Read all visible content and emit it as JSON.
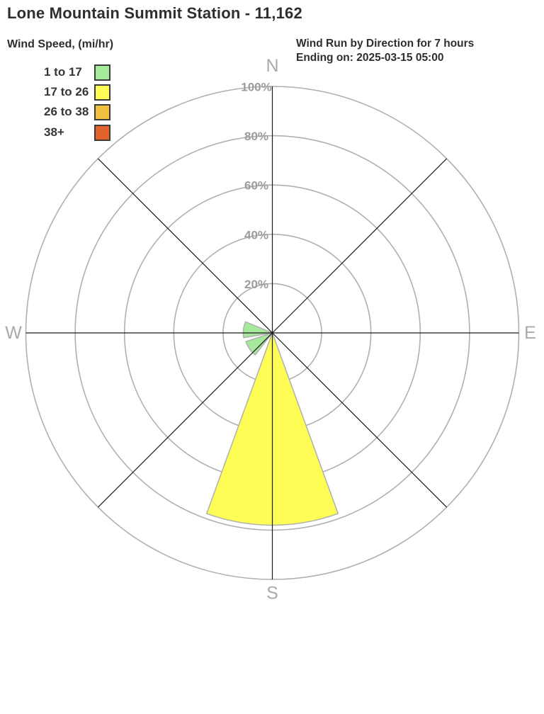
{
  "header": {
    "title": "Lone Mountain Summit Station - 11,162",
    "legend_title": "Wind Speed, (mi/hr)",
    "subtitle_line1": "Wind Run by Direction for 7 hours",
    "subtitle_line2": "Ending on: 2025-03-15 05:00"
  },
  "legend": {
    "items": [
      {
        "label": "1 to 17",
        "color": "#a6e89c"
      },
      {
        "label": "17 to 26",
        "color": "#fdfd55"
      },
      {
        "label": "26 to 38",
        "color": "#f0c03e"
      },
      {
        "label": "38+",
        "color": "#e2632c"
      }
    ]
  },
  "chart_data": {
    "type": "wind_rose",
    "title": "Wind Run by Direction for 7 hours Ending on: 2025-03-15 05:00",
    "station": "Lone Mountain Summit Station - 11,162",
    "units": "percent of wind run by direction",
    "speed_bins_mi_hr": [
      "1 to 17",
      "17 to 26",
      "26 to 38",
      "38+"
    ],
    "bin_colors": [
      "#a6e89c",
      "#fdfd55",
      "#f0c03e",
      "#e2632c"
    ],
    "rings_pct": [
      20,
      40,
      60,
      80,
      100
    ],
    "ring_labels": [
      "20%",
      "40%",
      "60%",
      "80%",
      "100%"
    ],
    "max_pct": 100,
    "grid": true,
    "spokes_deg": [
      0,
      45,
      90,
      135,
      180,
      225,
      270,
      315
    ],
    "compass_labels": [
      {
        "label": "N",
        "deg": 0
      },
      {
        "label": "E",
        "deg": 90
      },
      {
        "label": "S",
        "deg": 180
      },
      {
        "label": "W",
        "deg": 270
      }
    ],
    "petals": [
      {
        "direction": "S",
        "speed_bin": "17 to 26",
        "start_deg": 160,
        "end_deg": 200,
        "value_pct": 78,
        "color": "#fdfd55"
      },
      {
        "direction": "W",
        "speed_bin": "1 to 17",
        "start_deg": 260.5,
        "end_deg": 292.5,
        "value_pct": 11.8,
        "color": "#a6e89c"
      },
      {
        "direction": "SW",
        "speed_bin": "1 to 17",
        "start_deg": 218,
        "end_deg": 252,
        "value_pct": 11.3,
        "color": "#a6e89c"
      }
    ]
  },
  "colors": {
    "ring_stroke": "#b0b0b0",
    "spoke_stroke": "#1a1a1a",
    "petal_stroke": "#b0b0b0",
    "ring_label": "#9c9c9c",
    "compass_label": "#a9a9a9",
    "heading_text": "#2e2e2e"
  }
}
